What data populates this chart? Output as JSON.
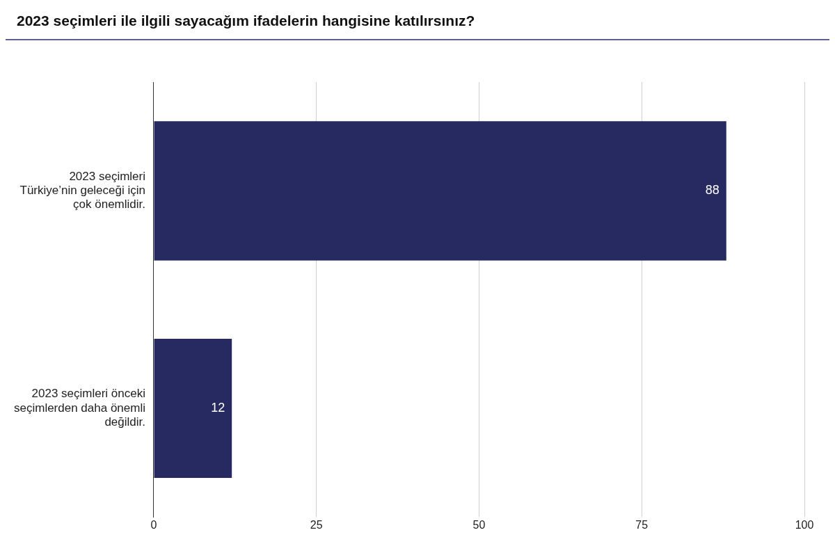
{
  "chart_data": {
    "type": "bar",
    "orientation": "horizontal",
    "title": "2023 seçimleri ile ilgili sayacağım ifadelerin hangisine katılırsınız?",
    "categories": [
      "2023 seçimleri Türkiye’nin geleceği için çok önemlidir.",
      "2023 seçimleri önceki seçimlerden daha önemli değildir."
    ],
    "values": [
      88,
      12
    ],
    "color": "#262a61",
    "xlim": [
      0,
      100
    ],
    "xticks": [
      0,
      25,
      50,
      75,
      100
    ],
    "grid": "x",
    "data_labels": true,
    "legend": false
  }
}
